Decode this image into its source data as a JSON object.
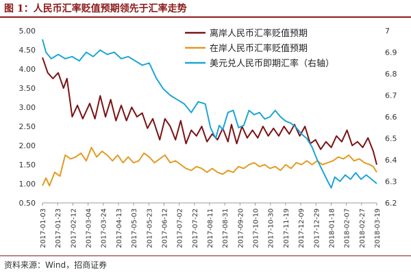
{
  "title": "图 1：人民币汇率贬值预期领先于汇率走势",
  "source": "资料来源：Wind，招商证券",
  "colors": {
    "offshore": "#7b1113",
    "onshore": "#e39a21",
    "spot": "#1aa5d6",
    "accent": "#8b1a1a"
  },
  "chart_data": {
    "type": "line",
    "title": "人民币汇率贬值预期领先于汇率走势",
    "x_ticks": [
      "2017-01-03",
      "2017-01-23",
      "2017-02-12",
      "2017-03-04",
      "2017-03-24",
      "2017-04-13",
      "2017-05-03",
      "2017-05-23",
      "2017-06-12",
      "2017-07-02",
      "2017-07-22",
      "2017-08-11",
      "2017-08-31",
      "2017-09-20",
      "2017-10-10",
      "2017-10-30",
      "2017-11-19",
      "2017-12-09",
      "2017-12-29",
      "2018-01-18",
      "2018-02-07",
      "2018-02-27",
      "2018-03-19"
    ],
    "y_left": {
      "min": 0.5,
      "max": 5.0,
      "ticks": [
        "0.50",
        "1.00",
        "1.50",
        "2.00",
        "2.50",
        "3.00",
        "3.50",
        "4.00",
        "4.50",
        "5.00"
      ]
    },
    "y_right": {
      "min": 6.2,
      "max": 7.0,
      "ticks": [
        "6.2",
        "6.3",
        "6.4",
        "6.5",
        "6.6",
        "6.7",
        "6.8",
        "6.9",
        "7"
      ],
      "label": "右轴"
    },
    "legend_position": "top-right",
    "series": [
      {
        "name": "离岸人民币汇率贬值预期",
        "axis": "left",
        "points": [
          [
            0,
            4.3
          ],
          [
            3,
            3.9
          ],
          [
            6,
            3.75
          ],
          [
            9,
            3.9
          ],
          [
            12,
            3.5
          ],
          [
            14,
            3.75
          ],
          [
            17,
            2.75
          ],
          [
            20,
            3.05
          ],
          [
            23,
            2.7
          ],
          [
            27,
            3.1
          ],
          [
            30,
            2.7
          ],
          [
            33,
            3.3
          ],
          [
            36,
            2.75
          ],
          [
            39,
            3.2
          ],
          [
            42,
            2.65
          ],
          [
            45,
            3.05
          ],
          [
            48,
            2.65
          ],
          [
            51,
            3.0
          ],
          [
            54,
            2.75
          ],
          [
            57,
            2.85
          ],
          [
            60,
            2.45
          ],
          [
            63,
            2.7
          ],
          [
            67,
            2.15
          ],
          [
            70,
            2.7
          ],
          [
            73,
            2.5
          ],
          [
            76,
            2.15
          ],
          [
            79,
            2.65
          ],
          [
            82,
            2.05
          ],
          [
            85,
            2.4
          ],
          [
            88,
            2.25
          ],
          [
            91,
            2.5
          ],
          [
            94,
            2.1
          ],
          [
            97,
            2.3
          ],
          [
            100,
            2.15
          ],
          [
            103,
            2.45
          ],
          [
            106,
            2.1
          ],
          [
            108,
            2.55
          ],
          [
            111,
            2.05
          ],
          [
            114,
            2.5
          ],
          [
            117,
            2.2
          ],
          [
            120,
            2.4
          ],
          [
            123,
            2.2
          ],
          [
            126,
            2.5
          ],
          [
            129,
            2.25
          ],
          [
            132,
            2.45
          ],
          [
            135,
            2.25
          ],
          [
            138,
            2.5
          ],
          [
            141,
            2.3
          ],
          [
            144,
            2.55
          ],
          [
            147,
            2.25
          ],
          [
            150,
            2.5
          ],
          [
            153,
            2.05
          ],
          [
            156,
            2.15
          ],
          [
            159,
            1.9
          ],
          [
            162,
            2.1
          ],
          [
            165,
            1.95
          ],
          [
            168,
            2.25
          ],
          [
            171,
            2.1
          ],
          [
            174,
            2.4
          ],
          [
            177,
            2.0
          ],
          [
            180,
            2.1
          ],
          [
            183,
            1.95
          ],
          [
            186,
            2.2
          ],
          [
            189,
            1.85
          ],
          [
            191,
            1.5
          ]
        ]
      },
      {
        "name": "在岸人民币汇率贬值预期",
        "axis": "left",
        "points": [
          [
            0,
            0.95
          ],
          [
            2,
            1.15
          ],
          [
            4,
            0.95
          ],
          [
            7,
            1.3
          ],
          [
            10,
            1.2
          ],
          [
            13,
            1.75
          ],
          [
            16,
            1.65
          ],
          [
            19,
            1.7
          ],
          [
            22,
            1.8
          ],
          [
            25,
            1.6
          ],
          [
            28,
            1.95
          ],
          [
            31,
            1.7
          ],
          [
            34,
            1.85
          ],
          [
            37,
            1.75
          ],
          [
            40,
            1.6
          ],
          [
            43,
            1.75
          ],
          [
            46,
            1.55
          ],
          [
            49,
            1.7
          ],
          [
            52,
            1.55
          ],
          [
            55,
            1.6
          ],
          [
            58,
            1.8
          ],
          [
            61,
            1.7
          ],
          [
            64,
            1.55
          ],
          [
            67,
            1.65
          ],
          [
            70,
            1.75
          ],
          [
            73,
            1.55
          ],
          [
            76,
            1.6
          ],
          [
            79,
            1.5
          ],
          [
            82,
            1.4
          ],
          [
            85,
            1.35
          ],
          [
            88,
            1.45
          ],
          [
            91,
            1.4
          ],
          [
            94,
            1.3
          ],
          [
            97,
            1.4
          ],
          [
            100,
            1.3
          ],
          [
            103,
            1.25
          ],
          [
            106,
            1.35
          ],
          [
            109,
            1.3
          ],
          [
            112,
            1.45
          ],
          [
            115,
            1.4
          ],
          [
            118,
            1.5
          ],
          [
            121,
            1.55
          ],
          [
            124,
            1.45
          ],
          [
            127,
            1.5
          ],
          [
            130,
            1.4
          ],
          [
            133,
            1.45
          ],
          [
            136,
            1.35
          ],
          [
            139,
            1.5
          ],
          [
            142,
            1.4
          ],
          [
            145,
            1.55
          ],
          [
            148,
            1.5
          ],
          [
            151,
            1.6
          ],
          [
            154,
            1.5
          ],
          [
            157,
            1.6
          ],
          [
            160,
            1.5
          ],
          [
            163,
            1.55
          ],
          [
            166,
            1.6
          ],
          [
            169,
            1.7
          ],
          [
            172,
            1.65
          ],
          [
            175,
            1.75
          ],
          [
            178,
            1.6
          ],
          [
            181,
            1.65
          ],
          [
            184,
            1.55
          ],
          [
            187,
            1.5
          ],
          [
            189,
            1.45
          ],
          [
            191,
            1.3
          ]
        ]
      },
      {
        "name": "美元兑人民币即期汇率（右轴）",
        "axis": "right",
        "points": [
          [
            0,
            6.96
          ],
          [
            2,
            6.9
          ],
          [
            5,
            6.87
          ],
          [
            9,
            6.89
          ],
          [
            13,
            6.87
          ],
          [
            17,
            6.88
          ],
          [
            21,
            6.86
          ],
          [
            25,
            6.9
          ],
          [
            29,
            6.88
          ],
          [
            33,
            6.91
          ],
          [
            37,
            6.89
          ],
          [
            41,
            6.9
          ],
          [
            45,
            6.87
          ],
          [
            49,
            6.88
          ],
          [
            53,
            6.86
          ],
          [
            57,
            6.84
          ],
          [
            61,
            6.85
          ],
          [
            65,
            6.78
          ],
          [
            69,
            6.73
          ],
          [
            73,
            6.7
          ],
          [
            77,
            6.68
          ],
          [
            81,
            6.66
          ],
          [
            85,
            6.62
          ],
          [
            89,
            6.67
          ],
          [
            93,
            6.66
          ],
          [
            96,
            6.55
          ],
          [
            99,
            6.5
          ],
          [
            101,
            6.56
          ],
          [
            103,
            6.54
          ],
          [
            106,
            6.62
          ],
          [
            109,
            6.63
          ],
          [
            112,
            6.55
          ],
          [
            115,
            6.56
          ],
          [
            118,
            6.63
          ],
          [
            121,
            6.61
          ],
          [
            124,
            6.62
          ],
          [
            127,
            6.59
          ],
          [
            130,
            6.6
          ],
          [
            133,
            6.63
          ],
          [
            136,
            6.6
          ],
          [
            139,
            6.58
          ],
          [
            142,
            6.57
          ],
          [
            145,
            6.55
          ],
          [
            148,
            6.52
          ],
          [
            151,
            6.5
          ],
          [
            154,
            6.46
          ],
          [
            157,
            6.4
          ],
          [
            160,
            6.35
          ],
          [
            163,
            6.3
          ],
          [
            165,
            6.27
          ],
          [
            167,
            6.32
          ],
          [
            170,
            6.3
          ],
          [
            173,
            6.33
          ],
          [
            176,
            6.31
          ],
          [
            179,
            6.34
          ],
          [
            182,
            6.31
          ],
          [
            185,
            6.33
          ],
          [
            188,
            6.31
          ],
          [
            191,
            6.29
          ]
        ]
      }
    ]
  }
}
